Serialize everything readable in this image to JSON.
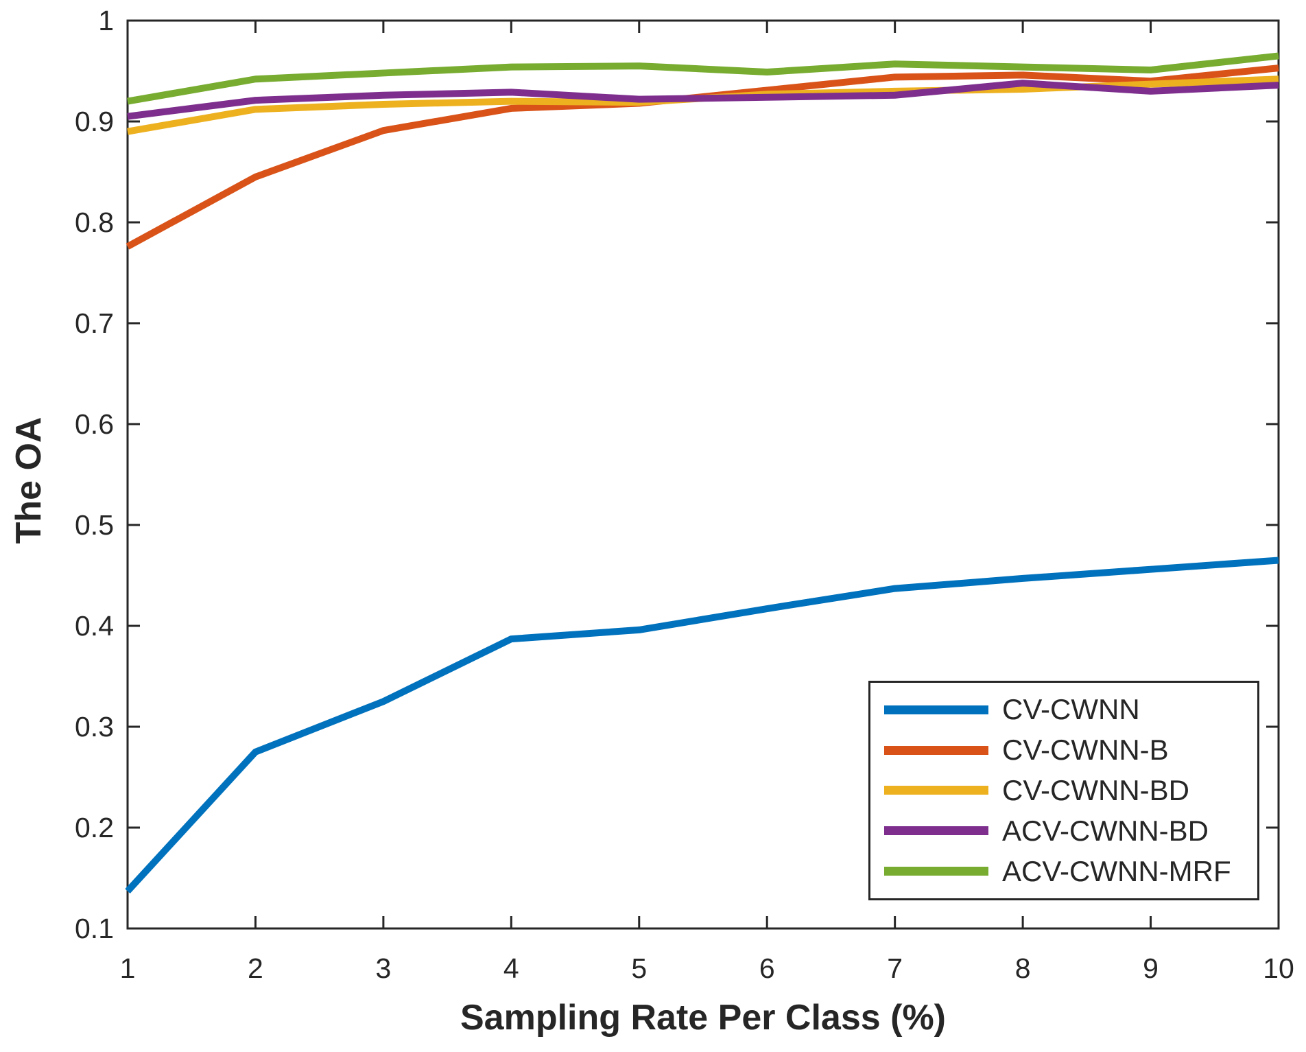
{
  "figure": {
    "background": "#ffffff",
    "axis_color": "#262626",
    "tick_label_color": "#262626"
  },
  "chart_data": {
    "type": "line",
    "title": "",
    "xlabel": "Sampling Rate Per Class (%)",
    "ylabel": "The OA",
    "xlim": [
      1,
      10
    ],
    "ylim": [
      0.1,
      1.0
    ],
    "grid": false,
    "legend_position": "lower right",
    "x": [
      1,
      2,
      3,
      4,
      5,
      6,
      7,
      8,
      9,
      10
    ],
    "x_ticks": [
      1,
      2,
      3,
      4,
      5,
      6,
      7,
      8,
      9,
      10
    ],
    "x_tick_labels": [
      "1",
      "2",
      "3",
      "4",
      "5",
      "6",
      "7",
      "8",
      "9",
      "10"
    ],
    "y_ticks": [
      0.1,
      0.2,
      0.3,
      0.4,
      0.5,
      0.6,
      0.7,
      0.8,
      0.9,
      1.0
    ],
    "y_tick_labels": [
      "0.1",
      "0.2",
      "0.3",
      "0.4",
      "0.5",
      "0.6",
      "0.7",
      "0.8",
      "0.9",
      "1"
    ],
    "series": [
      {
        "name": "CV-CWNN",
        "color": "#0072BD",
        "values": [
          0.137,
          0.275,
          0.325,
          0.387,
          0.396,
          0.417,
          0.437,
          0.447,
          0.456,
          0.465
        ]
      },
      {
        "name": "CV-CWNN-B",
        "color": "#D95319",
        "values": [
          0.776,
          0.845,
          0.891,
          0.913,
          0.918,
          0.931,
          0.944,
          0.946,
          0.94,
          0.953
        ]
      },
      {
        "name": "CV-CWNN-BD",
        "color": "#EDB120",
        "values": [
          0.89,
          0.912,
          0.917,
          0.92,
          0.919,
          0.927,
          0.93,
          0.932,
          0.937,
          0.942
        ]
      },
      {
        "name": "ACV-CWNN-BD",
        "color": "#7E2F8E",
        "values": [
          0.905,
          0.921,
          0.926,
          0.929,
          0.922,
          0.924,
          0.926,
          0.938,
          0.93,
          0.936
        ]
      },
      {
        "name": "ACV-CWNN-MRF",
        "color": "#77AC30",
        "values": [
          0.92,
          0.942,
          0.948,
          0.954,
          0.955,
          0.949,
          0.957,
          0.954,
          0.951,
          0.965
        ]
      }
    ]
  }
}
